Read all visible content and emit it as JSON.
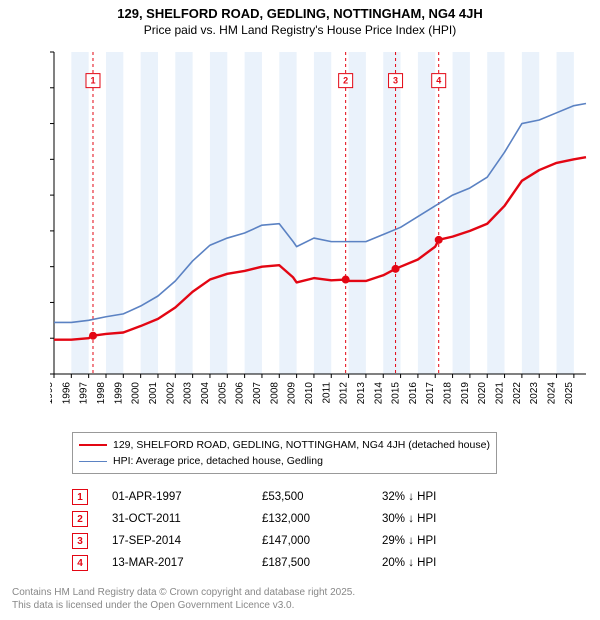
{
  "title_line1": "129, SHELFORD ROAD, GEDLING, NOTTINGHAM, NG4 4JH",
  "title_line2": "Price paid vs. HM Land Registry's House Price Index (HPI)",
  "chart": {
    "type": "line",
    "xlim": [
      1995,
      2025.7
    ],
    "ylim": [
      0,
      450000
    ],
    "ytick_step": 50000,
    "xtick_step": 1,
    "xticks": [
      1995,
      1996,
      1997,
      1998,
      1999,
      2000,
      2001,
      2002,
      2003,
      2004,
      2005,
      2006,
      2007,
      2008,
      2009,
      2010,
      2011,
      2012,
      2013,
      2014,
      2015,
      2016,
      2017,
      2018,
      2019,
      2020,
      2021,
      2022,
      2023,
      2024,
      2025
    ],
    "background_color": "#ffffff",
    "band_color": "#eaf2fb",
    "y_prefix": "£",
    "y_suffix": "K",
    "y_label_divisor": 1000,
    "series": [
      {
        "name": "129, SHELFORD ROAD, GEDLING, NOTTINGHAM, NG4 4JH (detached house)",
        "color": "#e30613",
        "width": 2.4,
        "points": [
          [
            1995,
            48000
          ],
          [
            1996,
            48000
          ],
          [
            1997,
            50000
          ],
          [
            1997.25,
            53500
          ],
          [
            1998,
            56000
          ],
          [
            1999,
            58000
          ],
          [
            2000,
            67000
          ],
          [
            2001,
            77000
          ],
          [
            2002,
            93000
          ],
          [
            2003,
            115000
          ],
          [
            2004,
            132000
          ],
          [
            2005,
            140000
          ],
          [
            2006,
            144000
          ],
          [
            2007,
            150000
          ],
          [
            2008,
            152000
          ],
          [
            2008.8,
            135000
          ],
          [
            2009,
            128000
          ],
          [
            2010,
            134000
          ],
          [
            2011,
            131000
          ],
          [
            2011.83,
            132000
          ],
          [
            2012,
            130000
          ],
          [
            2013,
            130000
          ],
          [
            2014,
            138000
          ],
          [
            2014.71,
            147000
          ],
          [
            2015,
            150000
          ],
          [
            2016,
            160000
          ],
          [
            2017,
            178000
          ],
          [
            2017.2,
            187500
          ],
          [
            2018,
            192000
          ],
          [
            2019,
            200000
          ],
          [
            2020,
            210000
          ],
          [
            2021,
            235000
          ],
          [
            2022,
            270000
          ],
          [
            2023,
            285000
          ],
          [
            2024,
            295000
          ],
          [
            2025,
            300000
          ],
          [
            2025.7,
            303000
          ]
        ]
      },
      {
        "name": "HPI: Average price, detached house, Gedling",
        "color": "#5b82c3",
        "width": 1.6,
        "points": [
          [
            1995,
            72000
          ],
          [
            1996,
            72000
          ],
          [
            1997,
            75000
          ],
          [
            1998,
            80000
          ],
          [
            1999,
            84000
          ],
          [
            2000,
            95000
          ],
          [
            2001,
            109000
          ],
          [
            2002,
            130000
          ],
          [
            2003,
            158000
          ],
          [
            2004,
            180000
          ],
          [
            2005,
            190000
          ],
          [
            2006,
            197000
          ],
          [
            2007,
            208000
          ],
          [
            2008,
            210000
          ],
          [
            2008.8,
            185000
          ],
          [
            2009,
            178000
          ],
          [
            2010,
            190000
          ],
          [
            2011,
            185000
          ],
          [
            2012,
            185000
          ],
          [
            2013,
            185000
          ],
          [
            2014,
            195000
          ],
          [
            2015,
            205000
          ],
          [
            2016,
            220000
          ],
          [
            2017,
            235000
          ],
          [
            2018,
            250000
          ],
          [
            2019,
            260000
          ],
          [
            2020,
            275000
          ],
          [
            2021,
            310000
          ],
          [
            2022,
            350000
          ],
          [
            2023,
            355000
          ],
          [
            2024,
            365000
          ],
          [
            2025,
            375000
          ],
          [
            2025.7,
            378000
          ]
        ]
      }
    ],
    "sale_markers": [
      {
        "n": "1",
        "x": 1997.25,
        "y": 53500
      },
      {
        "n": "2",
        "x": 2011.83,
        "y": 132000
      },
      {
        "n": "3",
        "x": 2014.71,
        "y": 147000
      },
      {
        "n": "4",
        "x": 2017.2,
        "y": 187500
      }
    ],
    "top_marker_y": 410000,
    "vline_color": "#e30613",
    "vline_dash": "3,3"
  },
  "legend": {
    "rows": [
      {
        "color": "#e30613",
        "width": 2.6,
        "label": "129, SHELFORD ROAD, GEDLING, NOTTINGHAM, NG4 4JH (detached house)"
      },
      {
        "color": "#5b82c3",
        "width": 1.6,
        "label": "HPI: Average price, detached house, Gedling"
      }
    ]
  },
  "annotations": [
    {
      "n": "1",
      "date": "01-APR-1997",
      "price": "£53,500",
      "delta": "32% ↓ HPI"
    },
    {
      "n": "2",
      "date": "31-OCT-2011",
      "price": "£132,000",
      "delta": "30% ↓ HPI"
    },
    {
      "n": "3",
      "date": "17-SEP-2014",
      "price": "£147,000",
      "delta": "29% ↓ HPI"
    },
    {
      "n": "4",
      "date": "13-MAR-2017",
      "price": "£187,500",
      "delta": "20% ↓ HPI"
    }
  ],
  "footer_line1": "Contains HM Land Registry data © Crown copyright and database right 2025.",
  "footer_line2": "This data is licensed under the Open Government Licence v3.0."
}
